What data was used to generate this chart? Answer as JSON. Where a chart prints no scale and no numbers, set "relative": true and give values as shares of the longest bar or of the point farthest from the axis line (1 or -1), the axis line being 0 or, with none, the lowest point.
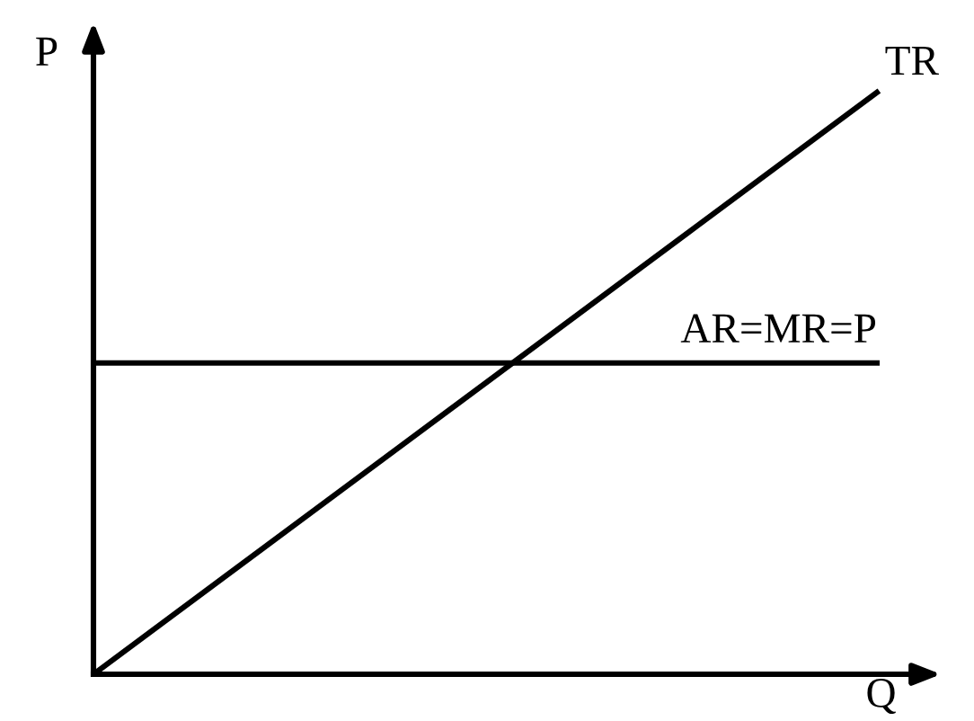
{
  "chart_data": {
    "type": "line",
    "relative": true,
    "xlabel": "Q",
    "ylabel": "P",
    "categories": [
      null,
      null
    ],
    "series": [
      {
        "name": "TR",
        "color": "#000000",
        "values": [
          0,
          1
        ]
      },
      {
        "name": "AR=MR=P",
        "color": "#000000",
        "values": [
          0.535,
          0.535
        ]
      }
    ],
    "marker": "none",
    "line_style": "solid",
    "tick_labels": false
  }
}
